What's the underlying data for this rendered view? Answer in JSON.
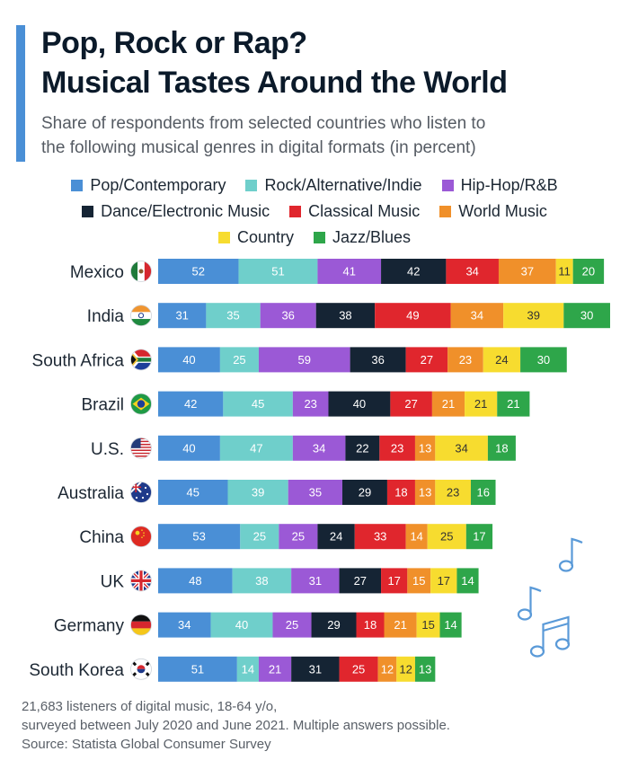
{
  "header": {
    "title_line1": "Pop, Rock or Rap?",
    "title_line2": "Musical Tastes Around the World",
    "subtitle_line1": "Share of respondents from selected countries who listen to",
    "subtitle_line2": "the following musical genres in digital formats (in percent)"
  },
  "legend": {
    "rows": [
      [
        {
          "label": "Pop/Contemporary",
          "color": "#4a8fd6"
        },
        {
          "label": "Rock/Alternative/Indie",
          "color": "#6fcfcb"
        },
        {
          "label": "Hip-Hop/R&B",
          "color": "#9b59d6"
        }
      ],
      [
        {
          "label": "Dance/Electronic Music",
          "color": "#152434"
        },
        {
          "label": "Classical Music",
          "color": "#e0262d"
        },
        {
          "label": "World Music",
          "color": "#f0902a"
        }
      ],
      [
        {
          "label": "Country",
          "color": "#f7dc2f"
        },
        {
          "label": "Jazz/Blues",
          "color": "#2ea64a"
        }
      ]
    ]
  },
  "chart_data": {
    "type": "bar",
    "orientation": "horizontal",
    "stacked": true,
    "categories": [
      "Mexico",
      "India",
      "South Africa",
      "Brazil",
      "U.S.",
      "Australia",
      "China",
      "UK",
      "Germany",
      "South Korea"
    ],
    "series": [
      {
        "name": "Pop/Contemporary",
        "color": "#4a8fd6",
        "values": [
          52,
          31,
          40,
          42,
          40,
          45,
          53,
          48,
          34,
          51
        ]
      },
      {
        "name": "Rock/Alternative/Indie",
        "color": "#6fcfcb",
        "values": [
          51,
          35,
          25,
          45,
          47,
          39,
          25,
          38,
          40,
          14
        ]
      },
      {
        "name": "Hip-Hop/R&B",
        "color": "#9b59d6",
        "values": [
          41,
          36,
          59,
          23,
          34,
          35,
          25,
          31,
          25,
          21
        ]
      },
      {
        "name": "Dance/Electronic Music",
        "color": "#152434",
        "values": [
          42,
          38,
          36,
          40,
          22,
          29,
          24,
          27,
          29,
          31
        ]
      },
      {
        "name": "Classical Music",
        "color": "#e0262d",
        "values": [
          34,
          49,
          27,
          27,
          23,
          18,
          33,
          17,
          18,
          25
        ]
      },
      {
        "name": "World Music",
        "color": "#f0902a",
        "values": [
          37,
          34,
          23,
          21,
          13,
          13,
          14,
          15,
          21,
          12
        ]
      },
      {
        "name": "Country",
        "color": "#f7dc2f",
        "values": [
          11,
          39,
          24,
          21,
          34,
          23,
          25,
          17,
          15,
          12
        ]
      },
      {
        "name": "Jazz/Blues",
        "color": "#2ea64a",
        "values": [
          20,
          30,
          30,
          21,
          18,
          16,
          17,
          14,
          14,
          13
        ]
      }
    ],
    "flags": [
      "mexico-flag-icon",
      "india-flag-icon",
      "south-africa-flag-icon",
      "brazil-flag-icon",
      "us-flag-icon",
      "australia-flag-icon",
      "china-flag-icon",
      "uk-flag-icon",
      "germany-flag-icon",
      "south-korea-flag-icon"
    ],
    "data_labels": true,
    "grid": false,
    "legend_position": "top"
  },
  "notes": {
    "line1": "21,683 listeners of digital music, 18-64 y/o,",
    "line2": "surveyed between July 2020 and June 2021. Multiple answers possible.",
    "source": "Source: Statista Global Consumer Survey"
  },
  "decoration": {
    "icon": "music-notes-icon",
    "color": "#5a9ad8"
  }
}
